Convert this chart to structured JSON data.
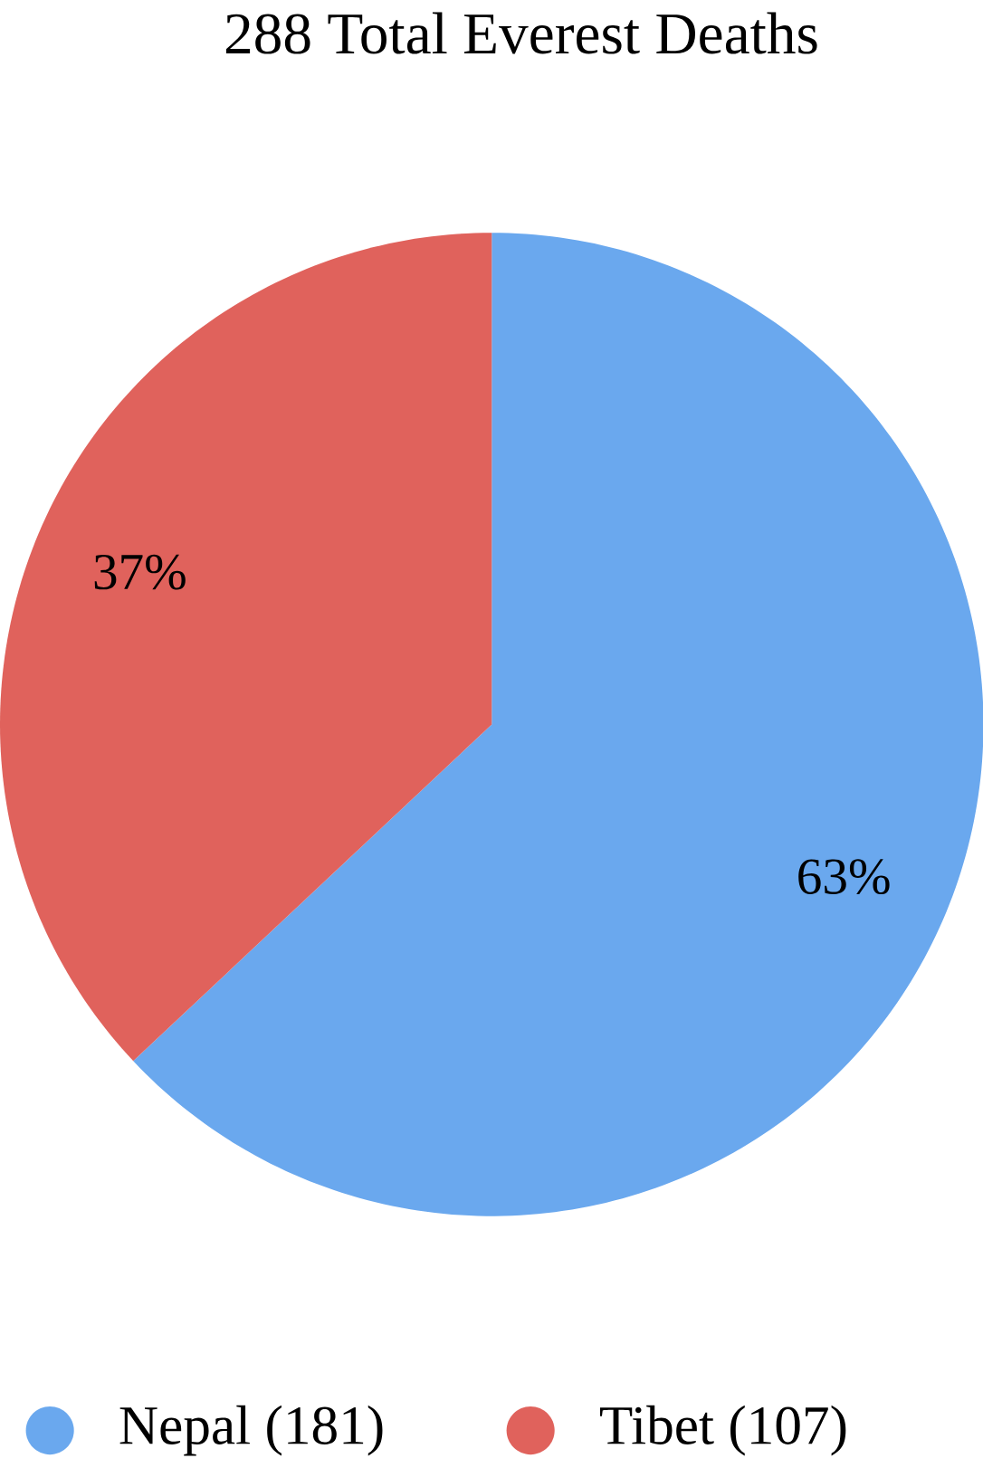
{
  "chart_data": {
    "type": "pie",
    "title": "288 Total Everest Deaths",
    "categories": [
      "Nepal (181)",
      "Tibet (107)"
    ],
    "values": [
      63,
      37
    ],
    "value_labels": [
      "63%",
      "37%"
    ],
    "colors": [
      "#6aa8ee",
      "#e0625c"
    ],
    "legend": "bottom"
  }
}
